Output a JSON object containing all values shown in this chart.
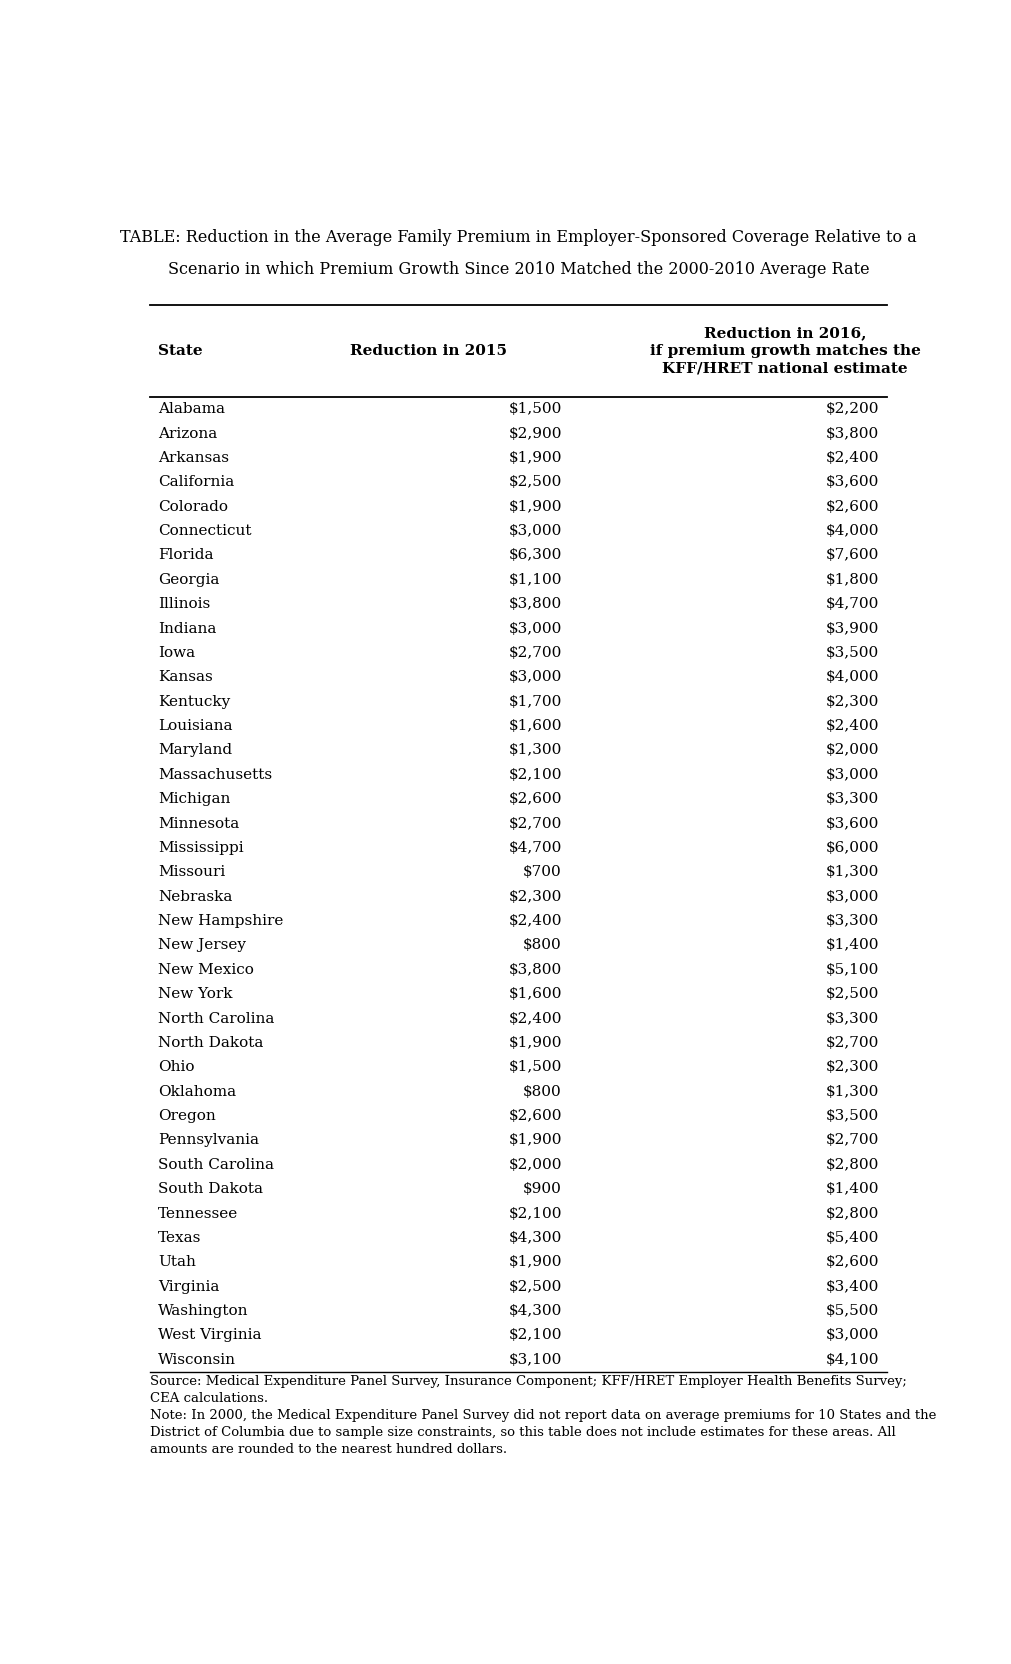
{
  "title_line1": "TABLE: Reduction in the Average Family Premium in Employer-Sponsored Coverage Relative to a",
  "title_line2": "Scenario in which Premium Growth Since 2010 Matched the 2000-2010 Average Rate",
  "col_headers": [
    "State",
    "Reduction in 2015",
    "Reduction in 2016,\nif premium growth matches the\nKFF/HRET national estimate"
  ],
  "rows": [
    [
      "Alabama",
      "$1,500",
      "$2,200"
    ],
    [
      "Arizona",
      "$2,900",
      "$3,800"
    ],
    [
      "Arkansas",
      "$1,900",
      "$2,400"
    ],
    [
      "California",
      "$2,500",
      "$3,600"
    ],
    [
      "Colorado",
      "$1,900",
      "$2,600"
    ],
    [
      "Connecticut",
      "$3,000",
      "$4,000"
    ],
    [
      "Florida",
      "$6,300",
      "$7,600"
    ],
    [
      "Georgia",
      "$1,100",
      "$1,800"
    ],
    [
      "Illinois",
      "$3,800",
      "$4,700"
    ],
    [
      "Indiana",
      "$3,000",
      "$3,900"
    ],
    [
      "Iowa",
      "$2,700",
      "$3,500"
    ],
    [
      "Kansas",
      "$3,000",
      "$4,000"
    ],
    [
      "Kentucky",
      "$1,700",
      "$2,300"
    ],
    [
      "Louisiana",
      "$1,600",
      "$2,400"
    ],
    [
      "Maryland",
      "$1,300",
      "$2,000"
    ],
    [
      "Massachusetts",
      "$2,100",
      "$3,000"
    ],
    [
      "Michigan",
      "$2,600",
      "$3,300"
    ],
    [
      "Minnesota",
      "$2,700",
      "$3,600"
    ],
    [
      "Mississippi",
      "$4,700",
      "$6,000"
    ],
    [
      "Missouri",
      "$700",
      "$1,300"
    ],
    [
      "Nebraska",
      "$2,300",
      "$3,000"
    ],
    [
      "New Hampshire",
      "$2,400",
      "$3,300"
    ],
    [
      "New Jersey",
      "$800",
      "$1,400"
    ],
    [
      "New Mexico",
      "$3,800",
      "$5,100"
    ],
    [
      "New York",
      "$1,600",
      "$2,500"
    ],
    [
      "North Carolina",
      "$2,400",
      "$3,300"
    ],
    [
      "North Dakota",
      "$1,900",
      "$2,700"
    ],
    [
      "Ohio",
      "$1,500",
      "$2,300"
    ],
    [
      "Oklahoma",
      "$800",
      "$1,300"
    ],
    [
      "Oregon",
      "$2,600",
      "$3,500"
    ],
    [
      "Pennsylvania",
      "$1,900",
      "$2,700"
    ],
    [
      "South Carolina",
      "$2,000",
      "$2,800"
    ],
    [
      "South Dakota",
      "$900",
      "$1,400"
    ],
    [
      "Tennessee",
      "$2,100",
      "$2,800"
    ],
    [
      "Texas",
      "$4,300",
      "$5,400"
    ],
    [
      "Utah",
      "$1,900",
      "$2,600"
    ],
    [
      "Virginia",
      "$2,500",
      "$3,400"
    ],
    [
      "Washington",
      "$4,300",
      "$5,500"
    ],
    [
      "West Virginia",
      "$2,100",
      "$3,000"
    ],
    [
      "Wisconsin",
      "$3,100",
      "$4,100"
    ]
  ],
  "source_text": "Source: Medical Expenditure Panel Survey, Insurance Component; KFF/HRET Employer Health Benefits Survey;\nCEA calculations.\nNote: In 2000, the Medical Expenditure Panel Survey did not report data on average premiums for 10 States and the\nDistrict of Columbia due to sample size constraints, so this table does not include estimates for these areas. All\namounts are rounded to the nearest hundred dollars.",
  "bg_color": "#ffffff",
  "text_color": "#000000",
  "line_color": "#000000",
  "title_fontsize": 11.5,
  "header_fontsize": 11,
  "body_fontsize": 11,
  "source_fontsize": 9.5
}
